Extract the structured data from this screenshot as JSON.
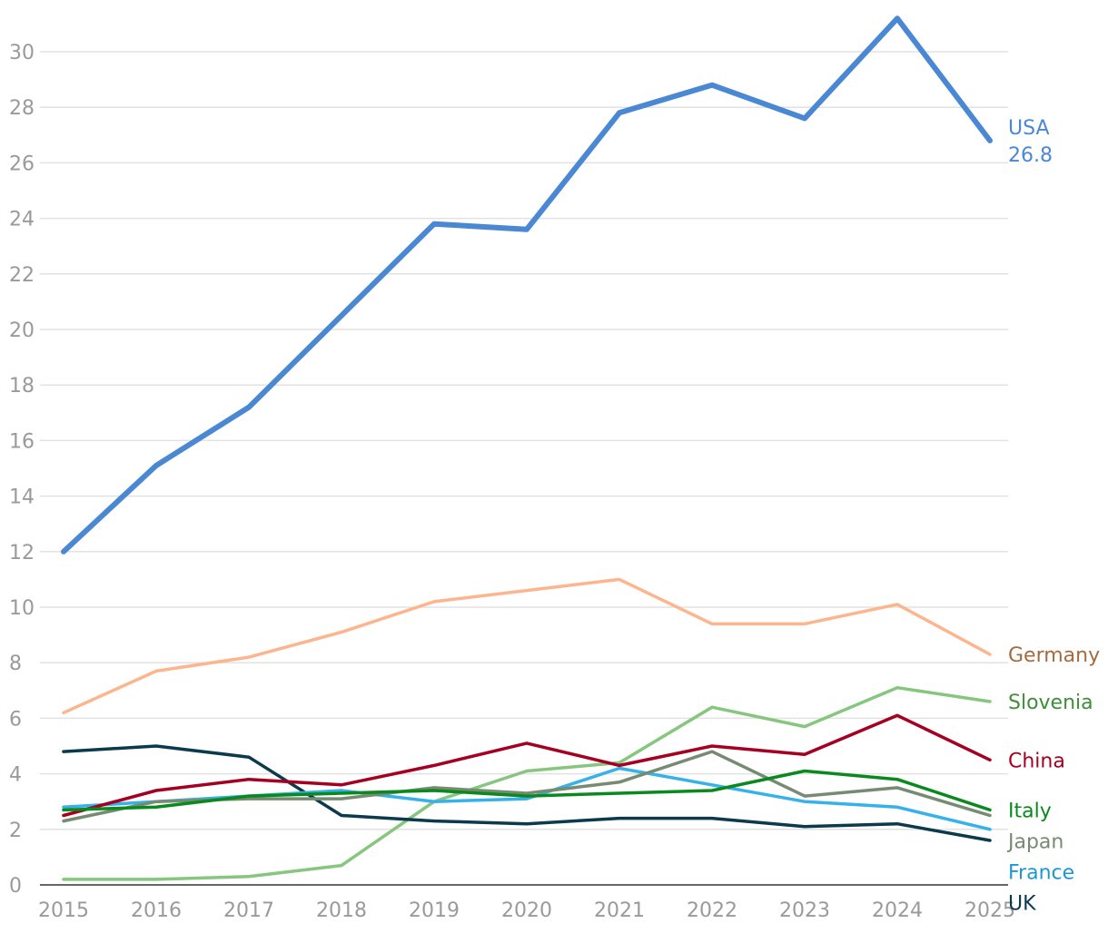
{
  "chart_data": {
    "type": "line",
    "title": "",
    "xlabel": "",
    "ylabel": "",
    "x": [
      "2015",
      "2016",
      "2017",
      "2018",
      "2019",
      "2020",
      "2021",
      "2022",
      "2023",
      "2024",
      "2025"
    ],
    "ylim": [
      0,
      31
    ],
    "yticks": [
      "0",
      "2",
      "4",
      "6",
      "8",
      "10",
      "12",
      "14",
      "16",
      "18",
      "20",
      "22",
      "24",
      "26",
      "28",
      "30"
    ],
    "grid": true,
    "legend": "direct labels at right end of lines",
    "series": [
      {
        "name": "USA",
        "color": "#4A88D4",
        "label_color": "#4A88D4",
        "end_value_label": "26.8",
        "emphasis": true,
        "values": [
          12.0,
          15.1,
          17.2,
          20.5,
          23.8,
          23.6,
          27.8,
          28.8,
          27.6,
          31.2,
          26.8
        ]
      },
      {
        "name": "Germany",
        "color": "#FDB58E",
        "label_color": "#A66A3F",
        "values": [
          6.2,
          7.7,
          8.2,
          9.1,
          10.2,
          10.6,
          11.0,
          9.4,
          9.4,
          10.1,
          8.3
        ]
      },
      {
        "name": "Slovenia",
        "color": "#86C67E",
        "label_color": "#3E8E3A",
        "values": [
          0.2,
          0.2,
          0.3,
          0.7,
          3.0,
          4.1,
          4.4,
          6.4,
          5.7,
          7.1,
          6.6
        ]
      },
      {
        "name": "China",
        "color": "#A50021",
        "label_color": "#A50021",
        "values": [
          2.5,
          3.4,
          3.8,
          3.6,
          4.3,
          5.1,
          4.3,
          5.0,
          4.7,
          6.1,
          4.5
        ]
      },
      {
        "name": "Italy",
        "color": "#0A8A1E",
        "label_color": "#0A8A1E",
        "values": [
          2.7,
          2.8,
          3.2,
          3.3,
          3.4,
          3.2,
          3.3,
          3.4,
          4.1,
          3.8,
          2.7
        ]
      },
      {
        "name": "Japan",
        "color": "#778B72",
        "label_color": "#778B72",
        "values": [
          2.3,
          3.0,
          3.1,
          3.1,
          3.5,
          3.3,
          3.7,
          4.8,
          3.2,
          3.5,
          2.5
        ]
      },
      {
        "name": "France",
        "color": "#36B1EA",
        "label_color": "#1C97D6",
        "values": [
          2.8,
          3.0,
          3.2,
          3.4,
          3.0,
          3.1,
          4.2,
          3.6,
          3.0,
          2.8,
          2.0
        ]
      },
      {
        "name": "UK",
        "color": "#0C3A4D",
        "label_color": "#0C3A4D",
        "values": [
          4.8,
          5.0,
          4.6,
          2.5,
          2.3,
          2.2,
          2.4,
          2.4,
          2.1,
          2.2,
          1.6
        ]
      }
    ]
  }
}
